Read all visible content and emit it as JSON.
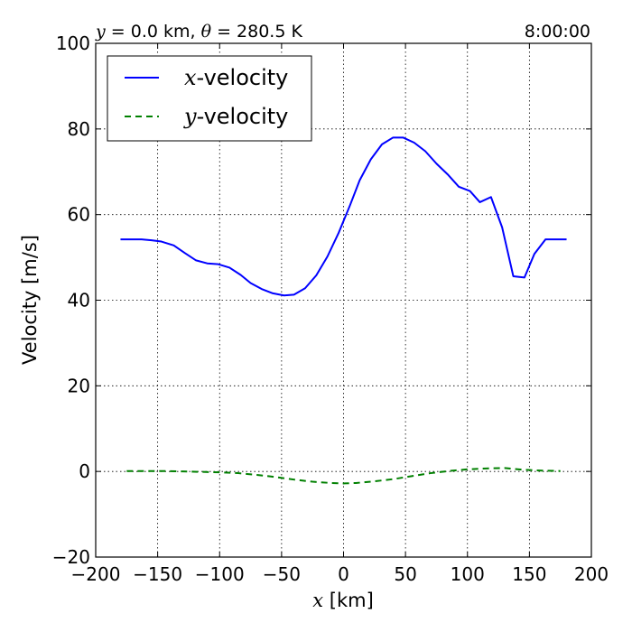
{
  "header": {
    "left_y_symbol": "y",
    "left_y_value": " = 0.0 km, ",
    "left_theta_symbol": "θ",
    "left_theta_value": " = 280.5 K",
    "time": "8:00:00"
  },
  "chart_data": {
    "type": "line",
    "xlabel_symbol": "x",
    "xlabel_unit": " [km]",
    "ylabel": "Velocity [m/s]",
    "xlim": [
      -200,
      200
    ],
    "ylim": [
      -20,
      100
    ],
    "xticks": [
      -200,
      -150,
      -100,
      -50,
      0,
      50,
      100,
      150,
      200
    ],
    "yticks": [
      -20,
      0,
      20,
      40,
      60,
      80,
      100
    ],
    "xtick_labels": [
      "−200",
      "−150",
      "−100",
      "−50",
      "0",
      "50",
      "100",
      "150",
      "200"
    ],
    "ytick_labels": [
      "−20",
      "0",
      "20",
      "40",
      "60",
      "80",
      "100"
    ],
    "grid": true,
    "legend_position": "top-left",
    "series": [
      {
        "name_symbol": "x",
        "name_suffix": "-velocity",
        "color": "#0000ff",
        "style": "solid",
        "x": [
          -180,
          -170,
          -163,
          -155,
          -147,
          -137,
          -128,
          -119,
          -110,
          -101,
          -92,
          -83,
          -75,
          -66,
          -57,
          -48,
          -40,
          -31,
          -22,
          -13,
          -4,
          5,
          13,
          22,
          31,
          40,
          48,
          57,
          66,
          75,
          84,
          93,
          102,
          110,
          119,
          128,
          137,
          146,
          154,
          163,
          172,
          180
        ],
        "y": [
          54.2,
          54.2,
          54.2,
          54.0,
          53.7,
          52.8,
          51.0,
          49.3,
          48.6,
          48.4,
          47.6,
          45.9,
          44.0,
          42.6,
          41.6,
          41.1,
          41.3,
          42.8,
          45.8,
          50.2,
          55.7,
          62.0,
          68.0,
          72.9,
          76.4,
          78.0,
          78.0,
          76.8,
          74.8,
          71.9,
          69.4,
          66.5,
          65.5,
          62.9,
          64.1,
          57.0,
          45.6,
          45.3,
          50.8,
          54.2,
          54.2,
          54.2
        ]
      },
      {
        "name_symbol": "y",
        "name_suffix": "-velocity",
        "color": "#008000",
        "style": "dashed",
        "x": [
          -175,
          -160,
          -145,
          -130,
          -115,
          -100,
          -85,
          -70,
          -55,
          -40,
          -25,
          -10,
          0,
          10,
          25,
          40,
          55,
          70,
          85,
          100,
          115,
          130,
          145,
          160,
          175
        ],
        "y": [
          0.1,
          0.1,
          0.1,
          0.0,
          -0.1,
          -0.2,
          -0.4,
          -0.8,
          -1.3,
          -1.9,
          -2.4,
          -2.7,
          -2.8,
          -2.7,
          -2.3,
          -1.8,
          -1.1,
          -0.4,
          0.1,
          0.5,
          0.7,
          0.8,
          0.4,
          0.2,
          0.1
        ]
      }
    ]
  }
}
